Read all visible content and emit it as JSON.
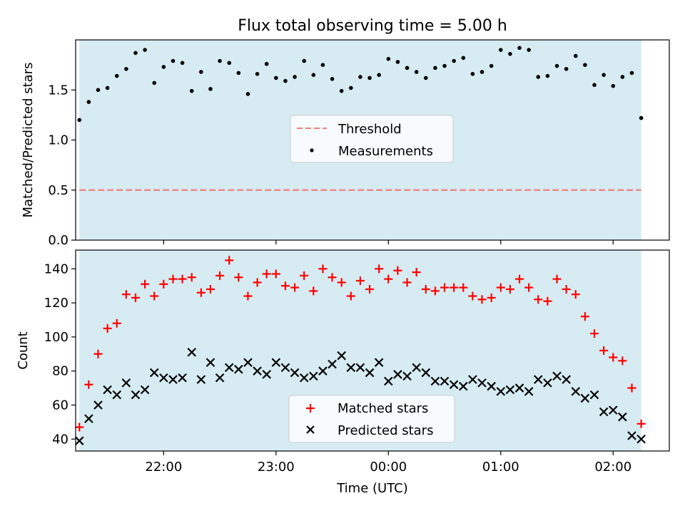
{
  "colors": {
    "band": "#add8e6",
    "threshold": "#f08080",
    "measurements": "#000000",
    "matched": "#ff0000",
    "predicted": "#000000"
  },
  "chart_data": [
    {
      "type": "scatter",
      "title": "Flux total observing time = 5.00 h",
      "ylabel": "Matched/Predicted stars",
      "xlabel": "",
      "xlim": [
        "21:13",
        "02:30"
      ],
      "ylim": [
        0,
        2.0
      ],
      "yticks": [
        "0.0",
        "0.5",
        "1.0",
        "1.5"
      ],
      "band": [
        "21:15",
        "02:15"
      ],
      "threshold": {
        "name": "Threshold",
        "value": 0.5
      },
      "legend": {
        "position": "center",
        "entries": [
          "Threshold",
          "Measurements"
        ]
      },
      "series": [
        {
          "name": "Measurements",
          "x": [
            "21:15",
            "21:20",
            "21:25",
            "21:30",
            "21:35",
            "21:40",
            "21:45",
            "21:50",
            "21:55",
            "22:00",
            "22:05",
            "22:10",
            "22:15",
            "22:20",
            "22:25",
            "22:30",
            "22:35",
            "22:40",
            "22:45",
            "22:50",
            "22:55",
            "23:00",
            "23:05",
            "23:10",
            "23:15",
            "23:20",
            "23:25",
            "23:30",
            "23:35",
            "23:40",
            "23:45",
            "23:50",
            "23:55",
            "00:00",
            "00:05",
            "00:10",
            "00:15",
            "00:20",
            "00:25",
            "00:30",
            "00:35",
            "00:40",
            "00:45",
            "00:50",
            "00:55",
            "01:00",
            "01:05",
            "01:10",
            "01:15",
            "01:20",
            "01:25",
            "01:30",
            "01:35",
            "01:40",
            "01:45",
            "01:50",
            "01:55",
            "02:00",
            "02:05",
            "02:10",
            "02:15"
          ],
          "values": [
            1.2,
            1.38,
            1.5,
            1.52,
            1.64,
            1.71,
            1.87,
            1.9,
            1.57,
            1.73,
            1.79,
            1.77,
            1.49,
            1.68,
            1.51,
            1.79,
            1.77,
            1.67,
            1.46,
            1.66,
            1.76,
            1.62,
            1.59,
            1.63,
            1.79,
            1.65,
            1.75,
            1.61,
            1.49,
            1.52,
            1.63,
            1.62,
            1.65,
            1.81,
            1.78,
            1.72,
            1.68,
            1.62,
            1.72,
            1.74,
            1.79,
            1.82,
            1.66,
            1.68,
            1.74,
            1.9,
            1.86,
            1.92,
            1.9,
            1.63,
            1.64,
            1.74,
            1.71,
            1.84,
            1.75,
            1.55,
            1.65,
            1.54,
            1.63,
            1.67,
            1.22
          ]
        }
      ]
    },
    {
      "type": "scatter",
      "title": "",
      "ylabel": "Count",
      "xlabel": "Time (UTC)",
      "xlim": [
        "21:13",
        "02:30"
      ],
      "ylim": [
        33,
        151
      ],
      "yticks": [
        "40",
        "60",
        "80",
        "100",
        "120",
        "140"
      ],
      "xticks": [
        "22:00",
        "23:00",
        "00:00",
        "01:00",
        "02:00"
      ],
      "band": [
        "21:15",
        "02:15"
      ],
      "legend": {
        "position": "lower center",
        "entries": [
          "Matched stars",
          "Predicted stars"
        ]
      },
      "x": [
        "21:15",
        "21:20",
        "21:25",
        "21:30",
        "21:35",
        "21:40",
        "21:45",
        "21:50",
        "21:55",
        "22:00",
        "22:05",
        "22:10",
        "22:15",
        "22:20",
        "22:25",
        "22:30",
        "22:35",
        "22:40",
        "22:45",
        "22:50",
        "22:55",
        "23:00",
        "23:05",
        "23:10",
        "23:15",
        "23:20",
        "23:25",
        "23:30",
        "23:35",
        "23:40",
        "23:45",
        "23:50",
        "23:55",
        "00:00",
        "00:05",
        "00:10",
        "00:15",
        "00:20",
        "00:25",
        "00:30",
        "00:35",
        "00:40",
        "00:45",
        "00:50",
        "00:55",
        "01:00",
        "01:05",
        "01:10",
        "01:15",
        "01:20",
        "01:25",
        "01:30",
        "01:35",
        "01:40",
        "01:45",
        "01:50",
        "01:55",
        "02:00",
        "02:05",
        "02:10",
        "02:15"
      ],
      "series": [
        {
          "name": "Matched stars",
          "values": [
            47,
            72,
            90,
            105,
            108,
            125,
            123,
            131,
            124,
            131,
            134,
            134,
            135,
            126,
            128,
            136,
            145,
            135,
            124,
            132,
            137,
            137,
            130,
            129,
            136,
            127,
            140,
            135,
            132,
            124,
            133,
            128,
            140,
            134,
            139,
            132,
            138,
            128,
            127,
            129,
            129,
            129,
            124,
            122,
            123,
            129,
            128,
            134,
            129,
            122,
            121,
            134,
            128,
            125,
            112,
            102,
            92,
            88,
            86,
            70,
            49
          ]
        },
        {
          "name": "Predicted stars",
          "values": [
            39,
            52,
            60,
            69,
            66,
            73,
            66,
            69,
            79,
            76,
            75,
            76,
            91,
            75,
            85,
            76,
            82,
            81,
            85,
            80,
            78,
            85,
            82,
            79,
            76,
            77,
            80,
            84,
            89,
            82,
            82,
            79,
            85,
            74,
            78,
            77,
            82,
            79,
            74,
            74,
            72,
            71,
            75,
            73,
            71,
            68,
            69,
            70,
            68,
            75,
            73,
            77,
            75,
            68,
            64,
            66,
            56,
            57,
            53,
            42,
            40
          ]
        }
      ]
    }
  ]
}
